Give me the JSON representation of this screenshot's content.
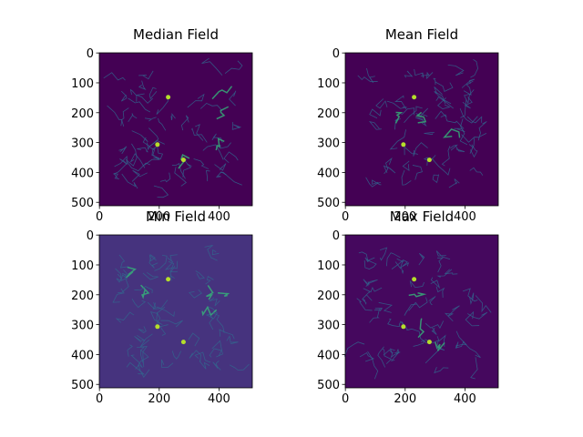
{
  "chart_data": [
    {
      "type": "image",
      "title": "Median Field",
      "color": "#440154",
      "xlim": [
        -0.5,
        511.5
      ],
      "ylim": [
        511.5,
        -0.5
      ],
      "xticks": [
        0,
        200,
        400
      ],
      "yticks": [
        0,
        100,
        200,
        300,
        400,
        500
      ]
    },
    {
      "type": "image",
      "title": "Mean Field",
      "color": "#440154",
      "xlim": [
        -0.5,
        511.5
      ],
      "ylim": [
        511.5,
        -0.5
      ],
      "xticks": [
        0,
        200,
        400
      ],
      "yticks": [
        0,
        100,
        200,
        300,
        400,
        500
      ]
    },
    {
      "type": "image",
      "title": "Min Field",
      "color": "#46337e",
      "xlim": [
        -0.5,
        511.5
      ],
      "ylim": [
        511.5,
        -0.5
      ],
      "xticks": [
        0,
        200,
        400
      ],
      "yticks": [
        0,
        100,
        200,
        300,
        400,
        500
      ]
    },
    {
      "type": "image",
      "title": "Max Field",
      "color": "#45085e",
      "xlim": [
        -0.5,
        511.5
      ],
      "ylim": [
        511.5,
        -0.5
      ],
      "xticks": [
        0,
        200,
        400
      ],
      "yticks": [
        0,
        100,
        200,
        300,
        400,
        500
      ]
    }
  ]
}
